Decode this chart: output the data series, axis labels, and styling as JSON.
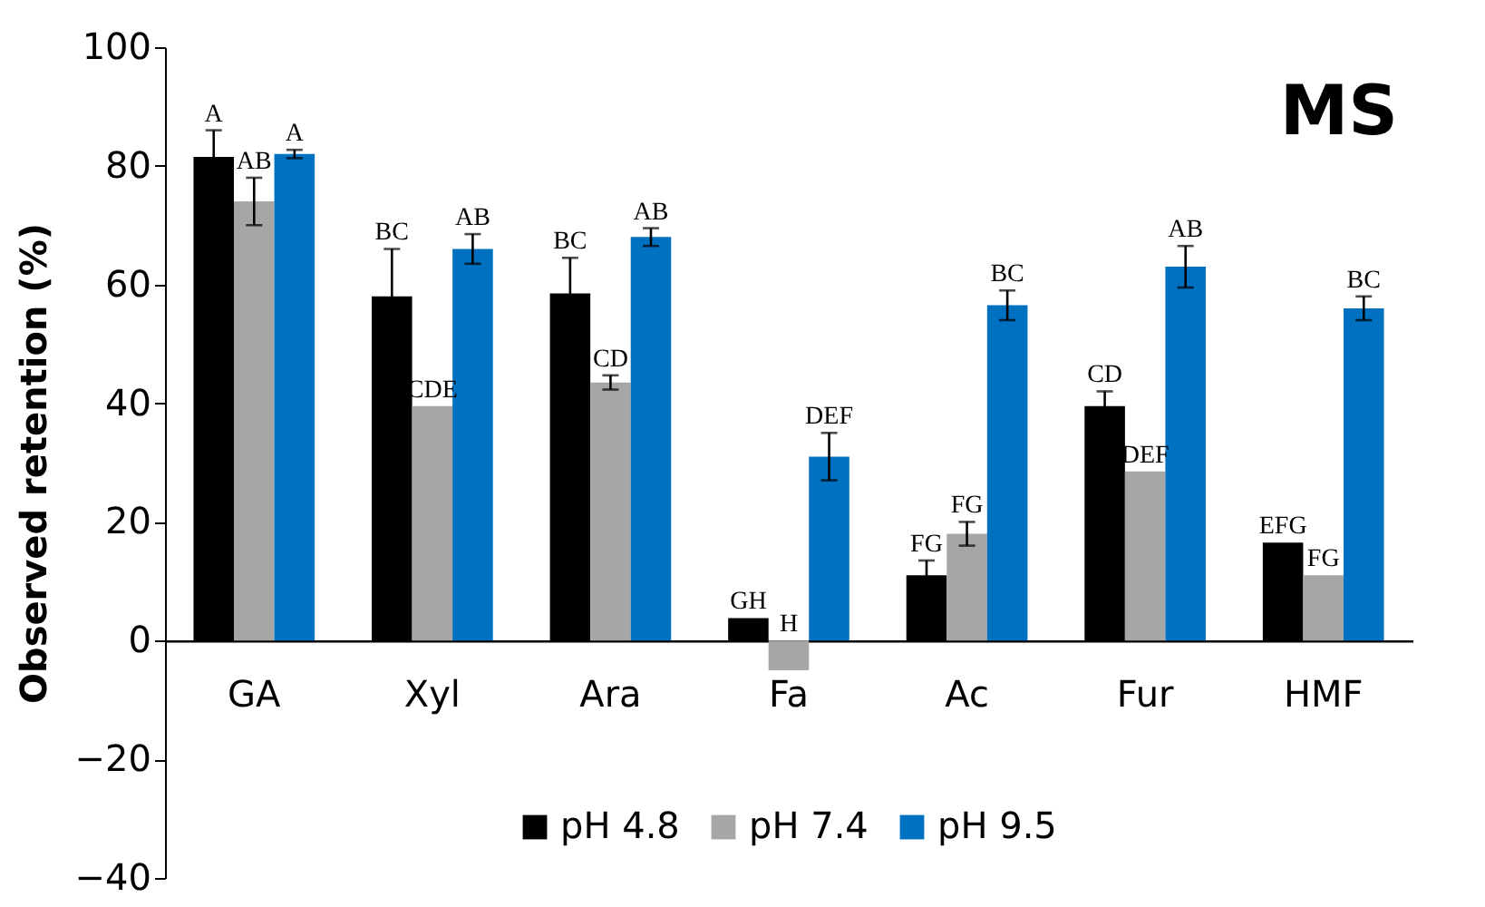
{
  "chart_data": {
    "type": "bar",
    "ylabel": "Observed retention (%)",
    "categories": [
      "GA",
      "Xyl",
      "Ara",
      "Fa",
      "Ac",
      "Fur",
      "HMF"
    ],
    "series": [
      {
        "name": "pH 4.8",
        "color": "#000000",
        "values": [
          81.5,
          58,
          58.5,
          3.8,
          11,
          39.5,
          16.5
        ],
        "errors": [
          4.5,
          8,
          6,
          null,
          2.5,
          2.5,
          null
        ],
        "value_labels": [
          "A",
          "BC",
          "BC",
          "GH",
          "FG",
          "CD",
          "EFG"
        ]
      },
      {
        "name": "pH 7.4",
        "color": "#a6a6a6",
        "values": [
          74,
          39.5,
          43.5,
          -5,
          18,
          28.5,
          11
        ],
        "errors": [
          4,
          null,
          1.2,
          null,
          2,
          null,
          null
        ],
        "value_labels": [
          "AB",
          "CDE",
          "CD",
          "H",
          "FG",
          "DEF",
          "FG"
        ]
      },
      {
        "name": "pH 9.5",
        "color": "#0070c0",
        "values": [
          82,
          66,
          68,
          31,
          56.5,
          63,
          56
        ],
        "errors": [
          0.7,
          2.5,
          1.5,
          4,
          2.5,
          3.5,
          2
        ],
        "value_labels": [
          "A",
          "AB",
          "AB",
          "DEF",
          "BC",
          "AB",
          "BC"
        ]
      }
    ],
    "ylim": [
      -40,
      100
    ],
    "yticks": [
      -40,
      -20,
      0,
      20,
      40,
      60,
      80,
      100
    ],
    "legend": "bottom",
    "annotations": [
      "MS"
    ]
  }
}
